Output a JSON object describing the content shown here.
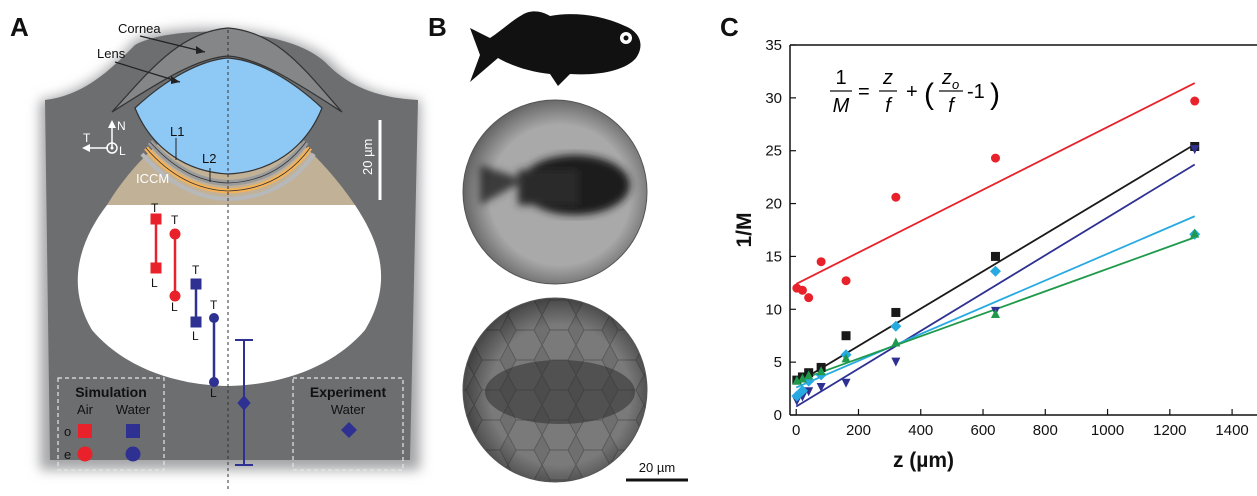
{
  "panels": {
    "a": {
      "letter": "A",
      "labels": {
        "cornea": "Cornea",
        "lens": "Lens",
        "l1": "L1",
        "l2": "L2",
        "iccm": "ICCM",
        "scale": "20 µm",
        "axis_n": "N",
        "axis_t": "T",
        "axis_l": "L"
      },
      "markers": {
        "t": "T",
        "l": "L"
      },
      "legend": {
        "simulation_title": "Simulation",
        "air": "Air",
        "water": "Water",
        "row_o": "o",
        "row_e": "e",
        "experiment_title": "Experiment",
        "experiment_water": "Water"
      },
      "colors": {
        "air": "#e8212a",
        "water": "#2e3192",
        "lens": "#8ec8f5",
        "iccm": "#c1b196",
        "tissue": "#6d6e70"
      }
    },
    "b": {
      "letter": "B",
      "scale": "20 µm"
    },
    "c": {
      "letter": "C",
      "equation": {
        "lhs_num": "1",
        "lhs_den": "M",
        "eq": "=",
        "t1_num": "z",
        "t1_den": "f",
        "plus": "+",
        "t2_num": "z",
        "t2_sub": "o",
        "t2_den": "f",
        "minus_one": "-1"
      }
    }
  },
  "chart_data": {
    "type": "scatter",
    "xlabel": "z (µm)",
    "ylabel": "1/M",
    "xlim": [
      -20,
      1480
    ],
    "ylim": [
      0,
      35
    ],
    "xticks": [
      0,
      200,
      400,
      600,
      800,
      1000,
      1200,
      1400
    ],
    "yticks": [
      0,
      5,
      10,
      15,
      20,
      25,
      30,
      35
    ],
    "grid": false,
    "series": [
      {
        "marker": "circle",
        "color": "#e8212a",
        "x": [
          2,
          20,
          40,
          80,
          160,
          320,
          640,
          1280
        ],
        "y": [
          12.0,
          11.8,
          11.1,
          14.5,
          12.7,
          20.6,
          24.3,
          29.7
        ],
        "fit": [
          [
            0,
            12.4
          ],
          [
            1280,
            31.4
          ]
        ]
      },
      {
        "marker": "square",
        "color": "#1a1a1a",
        "x": [
          2,
          20,
          40,
          80,
          160,
          320,
          640,
          1280
        ],
        "y": [
          3.3,
          3.6,
          4.0,
          4.5,
          7.5,
          9.7,
          15.0,
          25.4
        ],
        "fit": [
          [
            0,
            3.0
          ],
          [
            1280,
            25.6
          ]
        ]
      },
      {
        "marker": "triangle-down",
        "color": "#2e3192",
        "x": [
          2,
          20,
          40,
          80,
          160,
          320,
          640,
          1280
        ],
        "y": [
          1.3,
          1.7,
          2.2,
          2.6,
          3.0,
          5.0,
          9.8,
          25.1
        ],
        "fit": [
          [
            0,
            0.8
          ],
          [
            1280,
            23.7
          ]
        ]
      },
      {
        "marker": "diamond",
        "color": "#27aae1",
        "x": [
          2,
          20,
          40,
          80,
          160,
          320,
          640,
          1280
        ],
        "y": [
          1.8,
          2.3,
          3.2,
          3.8,
          5.7,
          8.4,
          13.6,
          17.1
        ],
        "fit": [
          [
            0,
            2.6
          ],
          [
            1280,
            18.8
          ]
        ]
      },
      {
        "marker": "triangle-up",
        "color": "#1e9a4a",
        "x": [
          2,
          20,
          40,
          80,
          160,
          320,
          640,
          1280
        ],
        "y": [
          3.3,
          3.5,
          3.8,
          4.2,
          5.4,
          6.9,
          9.6,
          17.2
        ],
        "fit": [
          [
            0,
            3.2
          ],
          [
            1280,
            16.8
          ]
        ]
      }
    ]
  }
}
